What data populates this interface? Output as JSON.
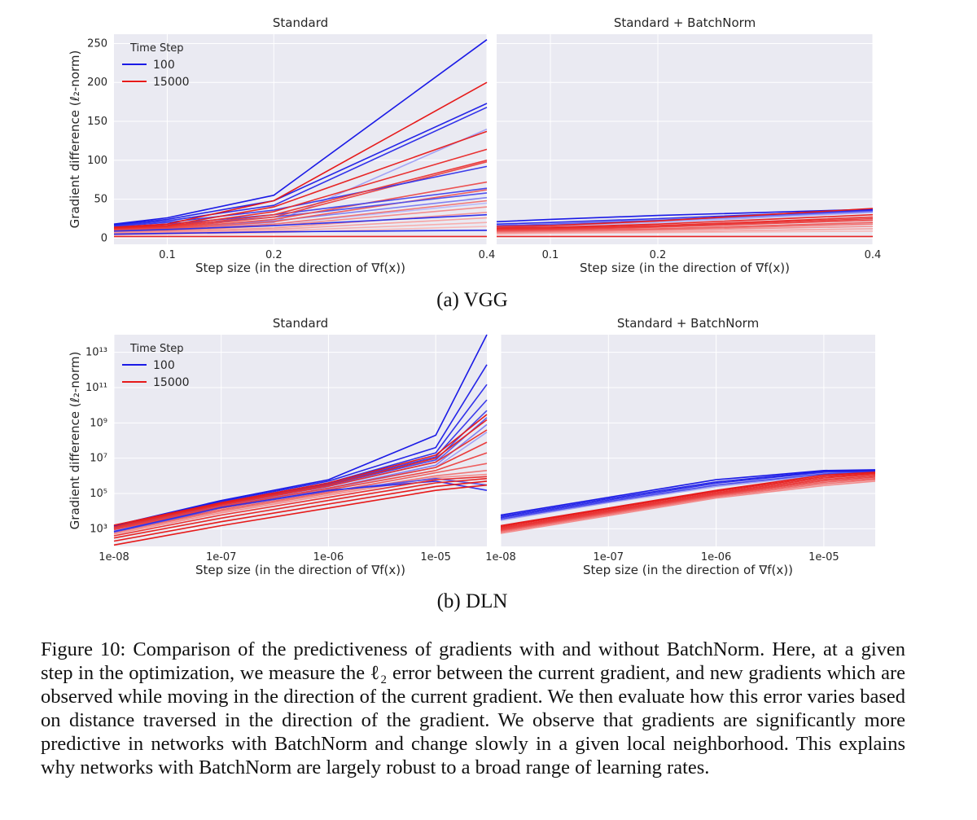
{
  "figure": {
    "subcaption_a": "(a) VGG",
    "subcaption_b": "(b) DLN",
    "caption": "Figure 10: Comparison of the predictiveness of gradients with and without BatchNorm. Here, at a given step in the optimization, we measure the ℓ₂ error between the current gradient, and new gradients which are observed while moving in the direction of the current gradient. We then evaluate how this error varies based on distance traversed in the direction of the gradient. We observe that gradients are significantly more predictive in networks with BatchNorm and change slowly in a given local neighborhood. This explains why networks with BatchNorm are largely robust to a broad range of learning rates."
  },
  "colors": {
    "blue": "#1a1ae6",
    "red": "#e61a1a",
    "plot_bg": "#eaeaf2",
    "grid": "#ffffff"
  },
  "chart_data": [
    {
      "type": "line",
      "title": "Standard",
      "xlabel": "Step size (in the direction of ∇f(x))",
      "ylabel": "Gradient difference (ℓ₂-norm)",
      "xscale": "linear",
      "xlim": [
        0.05,
        0.4
      ],
      "ylim": [
        -8,
        262
      ],
      "xticks": [
        {
          "v": 0.1,
          "label": "0.1"
        },
        {
          "v": 0.2,
          "label": "0.2"
        },
        {
          "v": 0.4,
          "label": "0.4"
        }
      ],
      "yticks": [
        {
          "v": 0,
          "label": "0"
        },
        {
          "v": 50,
          "label": "50"
        },
        {
          "v": 100,
          "label": "100"
        },
        {
          "v": 150,
          "label": "150"
        },
        {
          "v": 200,
          "label": "200"
        },
        {
          "v": 250,
          "label": "250"
        }
      ],
      "legend": {
        "title": "Time Step",
        "position": "upper-left",
        "entries": [
          {
            "label": "100",
            "color": "#1a1ae6"
          },
          {
            "label": "15000",
            "color": "#e61a1a"
          }
        ]
      },
      "x": [
        0.05,
        0.1,
        0.2,
        0.4
      ],
      "series": [
        {
          "group": "100",
          "shade": 1.0,
          "values": [
            18,
            26,
            55,
            255
          ]
        },
        {
          "group": "100",
          "shade": 0.95,
          "values": [
            17,
            24,
            48,
            173
          ]
        },
        {
          "group": "100",
          "shade": 0.9,
          "values": [
            16,
            22,
            42,
            168
          ]
        },
        {
          "group": "100",
          "shade": 0.85,
          "values": [
            15,
            20,
            36,
            92
          ]
        },
        {
          "group": "100",
          "shade": 0.8,
          "values": [
            13,
            18,
            30,
            64
          ]
        },
        {
          "group": "100",
          "shade": 0.75,
          "values": [
            12,
            16,
            27,
            58
          ]
        },
        {
          "group": "100",
          "shade": 0.55,
          "values": [
            11,
            14,
            22,
            52
          ]
        },
        {
          "group": "100",
          "shade": 0.4,
          "values": [
            10,
            13,
            20,
            140
          ]
        },
        {
          "group": "100",
          "shade": 0.3,
          "values": [
            10,
            12,
            18,
            45
          ]
        },
        {
          "group": "100",
          "shade": 0.9,
          "values": [
            9,
            11,
            16,
            30
          ]
        },
        {
          "group": "100",
          "shade": 0.95,
          "values": [
            5,
            6,
            8,
            10
          ]
        },
        {
          "group": "15000",
          "shade": 1.0,
          "values": [
            14,
            18,
            48,
            200
          ]
        },
        {
          "group": "15000",
          "shade": 0.95,
          "values": [
            13,
            16,
            40,
            137
          ]
        },
        {
          "group": "15000",
          "shade": 0.9,
          "values": [
            12,
            15,
            34,
            114
          ]
        },
        {
          "group": "15000",
          "shade": 0.85,
          "values": [
            12,
            14,
            30,
            100
          ]
        },
        {
          "group": "15000",
          "shade": 0.8,
          "values": [
            11,
            13,
            27,
            98
          ]
        },
        {
          "group": "15000",
          "shade": 0.75,
          "values": [
            10,
            12,
            24,
            72
          ]
        },
        {
          "group": "15000",
          "shade": 0.7,
          "values": [
            9,
            11,
            21,
            62
          ]
        },
        {
          "group": "15000",
          "shade": 0.6,
          "values": [
            9,
            10,
            18,
            48
          ]
        },
        {
          "group": "15000",
          "shade": 0.5,
          "values": [
            8,
            9,
            16,
            40
          ]
        },
        {
          "group": "15000",
          "shade": 0.45,
          "values": [
            7,
            8,
            13,
            33
          ]
        },
        {
          "group": "15000",
          "shade": 0.4,
          "values": [
            6,
            7,
            11,
            26
          ]
        },
        {
          "group": "15000",
          "shade": 0.35,
          "values": [
            5,
            6,
            9,
            20
          ]
        },
        {
          "group": "15000",
          "shade": 0.3,
          "values": [
            4,
            5,
            7,
            15
          ]
        },
        {
          "group": "15000",
          "shade": 0.95,
          "values": [
            2,
            2,
            2,
            2
          ]
        }
      ]
    },
    {
      "type": "line",
      "title": "Standard + BatchNorm",
      "xlabel": "Step size (in the direction of ∇f(x))",
      "ylabel": "",
      "xscale": "linear",
      "xlim": [
        0.05,
        0.4
      ],
      "ylim": [
        -8,
        262
      ],
      "xticks": [
        {
          "v": 0.1,
          "label": "0.1"
        },
        {
          "v": 0.2,
          "label": "0.2"
        },
        {
          "v": 0.4,
          "label": "0.4"
        }
      ],
      "yticks": [
        {
          "v": 0,
          "label": ""
        },
        {
          "v": 50,
          "label": ""
        },
        {
          "v": 100,
          "label": ""
        },
        {
          "v": 150,
          "label": ""
        },
        {
          "v": 200,
          "label": ""
        },
        {
          "v": 250,
          "label": ""
        }
      ],
      "x": [
        0.05,
        0.1,
        0.2,
        0.4
      ],
      "series": [
        {
          "group": "100",
          "shade": 1.0,
          "values": [
            21,
            24,
            29,
            37
          ]
        },
        {
          "group": "100",
          "shade": 0.9,
          "values": [
            18,
            20,
            25,
            36
          ]
        },
        {
          "group": "100",
          "shade": 0.7,
          "values": [
            16,
            18,
            23,
            35
          ]
        },
        {
          "group": "100",
          "shade": 0.5,
          "values": [
            15,
            17,
            22,
            34
          ]
        },
        {
          "group": "100",
          "shade": 0.35,
          "values": [
            14,
            16,
            20,
            33
          ]
        },
        {
          "group": "15000",
          "shade": 1.0,
          "values": [
            15,
            16,
            22,
            38
          ]
        },
        {
          "group": "15000",
          "shade": 0.95,
          "values": [
            13,
            14,
            18,
            30
          ]
        },
        {
          "group": "15000",
          "shade": 0.9,
          "values": [
            12,
            13,
            16,
            27
          ]
        },
        {
          "group": "15000",
          "shade": 0.85,
          "values": [
            11,
            12,
            15,
            25
          ]
        },
        {
          "group": "15000",
          "shade": 0.8,
          "values": [
            10,
            11,
            14,
            23
          ]
        },
        {
          "group": "15000",
          "shade": 0.7,
          "values": [
            9,
            10,
            12,
            20
          ]
        },
        {
          "group": "15000",
          "shade": 0.6,
          "values": [
            8,
            9,
            11,
            18
          ]
        },
        {
          "group": "15000",
          "shade": 0.5,
          "values": [
            7,
            8,
            10,
            15
          ]
        },
        {
          "group": "15000",
          "shade": 0.4,
          "values": [
            6,
            7,
            8,
            12
          ]
        },
        {
          "group": "15000",
          "shade": 0.3,
          "values": [
            5,
            6,
            7,
            9
          ]
        },
        {
          "group": "15000",
          "shade": 0.95,
          "values": [
            2,
            2,
            2,
            2
          ]
        }
      ]
    },
    {
      "type": "line",
      "title": "Standard",
      "xlabel": "Step size (in the direction of ∇f(x))",
      "ylabel": "Gradient difference (ℓ₂-norm)",
      "xscale": "log",
      "yscale": "log",
      "xlim": [
        1e-08,
        3e-05
      ],
      "ylim": [
        100.0,
        100000000000000.0
      ],
      "xticks": [
        {
          "v": 1e-08,
          "label": "1e-08"
        },
        {
          "v": 1e-07,
          "label": "1e-07"
        },
        {
          "v": 1e-06,
          "label": "1e-06"
        },
        {
          "v": 1e-05,
          "label": "1e-05"
        }
      ],
      "yticks": [
        {
          "v": 1000.0,
          "label": "10³"
        },
        {
          "v": 100000.0,
          "label": "10⁵"
        },
        {
          "v": 10000000.0,
          "label": "10⁷"
        },
        {
          "v": 1000000000.0,
          "label": "10⁹"
        },
        {
          "v": 100000000000.0,
          "label": "10¹¹"
        },
        {
          "v": 10000000000000.0,
          "label": "10¹³"
        }
      ],
      "legend": {
        "title": "Time Step",
        "position": "upper-left",
        "entries": [
          {
            "label": "100",
            "color": "#1a1ae6"
          },
          {
            "label": "15000",
            "color": "#e61a1a"
          }
        ]
      },
      "x": [
        1e-08,
        1e-07,
        1e-06,
        1e-05,
        3e-05
      ],
      "series": [
        {
          "group": "100",
          "shade": 1.0,
          "values": [
            1500,
            40000,
            600000,
            200000000,
            100000000000000
          ]
        },
        {
          "group": "100",
          "shade": 0.95,
          "values": [
            1400,
            35000,
            500000,
            40000000,
            2000000000000
          ]
        },
        {
          "group": "100",
          "shade": 0.9,
          "values": [
            1300,
            30000,
            400000,
            20000000,
            150000000000
          ]
        },
        {
          "group": "100",
          "shade": 0.85,
          "values": [
            1200,
            28000,
            350000,
            12000000,
            20000000000
          ]
        },
        {
          "group": "100",
          "shade": 0.8,
          "values": [
            1100,
            25000,
            300000,
            8000000,
            5000000000
          ]
        },
        {
          "group": "100",
          "shade": 0.7,
          "values": [
            1000,
            22000,
            250000,
            6000000,
            2000000000
          ]
        },
        {
          "group": "100",
          "shade": 0.55,
          "values": [
            900,
            20000,
            200000,
            4000000,
            800000000
          ]
        },
        {
          "group": "100",
          "shade": 0.4,
          "values": [
            800,
            18000,
            180000,
            3000000,
            300000000
          ]
        },
        {
          "group": "100",
          "shade": 0.9,
          "values": [
            700,
            16000,
            150000,
            500000,
            150000
          ]
        },
        {
          "group": "100",
          "shade": 0.75,
          "values": [
            650,
            15000,
            140000,
            700000,
            300000
          ]
        },
        {
          "group": "15000",
          "shade": 1.0,
          "values": [
            1600,
            30000,
            400000,
            15000000,
            3000000000
          ]
        },
        {
          "group": "15000",
          "shade": 0.95,
          "values": [
            1400,
            26000,
            320000,
            10000000,
            1500000000
          ]
        },
        {
          "group": "15000",
          "shade": 0.9,
          "values": [
            1200,
            22000,
            260000,
            6000000,
            400000000
          ]
        },
        {
          "group": "15000",
          "shade": 0.85,
          "values": [
            1000,
            18000,
            200000,
            3000000,
            80000000
          ]
        },
        {
          "group": "15000",
          "shade": 0.8,
          "values": [
            900,
            15000,
            160000,
            2000000,
            20000000
          ]
        },
        {
          "group": "15000",
          "shade": 0.7,
          "values": [
            700,
            12000,
            120000,
            1500000,
            5000000
          ]
        },
        {
          "group": "15000",
          "shade": 0.6,
          "values": [
            600,
            10000,
            100000,
            1000000,
            2000000
          ]
        },
        {
          "group": "15000",
          "shade": 0.5,
          "values": [
            500,
            8000,
            80000,
            800000,
            1200000
          ]
        },
        {
          "group": "15000",
          "shade": 0.9,
          "values": [
            400,
            6000,
            60000,
            600000,
            900000
          ]
        },
        {
          "group": "15000",
          "shade": 0.95,
          "values": [
            300,
            4000,
            40000,
            400000,
            700000
          ]
        },
        {
          "group": "15000",
          "shade": 1.0,
          "values": [
            200,
            2500,
            25000,
            250000,
            500000
          ]
        },
        {
          "group": "15000",
          "shade": 1.0,
          "values": [
            120,
            1500,
            15000,
            150000,
            300000
          ]
        }
      ]
    },
    {
      "type": "line",
      "title": "Standard + BatchNorm",
      "xlabel": "Step size (in the direction of ∇f(x))",
      "ylabel": "",
      "xscale": "log",
      "yscale": "log",
      "xlim": [
        1e-08,
        3e-05
      ],
      "ylim": [
        100.0,
        100000000000000.0
      ],
      "xticks": [
        {
          "v": 1e-08,
          "label": "1e-08"
        },
        {
          "v": 1e-07,
          "label": "1e-07"
        },
        {
          "v": 1e-06,
          "label": "1e-06"
        },
        {
          "v": 1e-05,
          "label": "1e-05"
        }
      ],
      "yticks": [
        {
          "v": 1000.0,
          "label": ""
        },
        {
          "v": 100000.0,
          "label": ""
        },
        {
          "v": 10000000.0,
          "label": ""
        },
        {
          "v": 1000000000.0,
          "label": ""
        },
        {
          "v": 100000000000.0,
          "label": ""
        },
        {
          "v": 10000000000000.0,
          "label": ""
        }
      ],
      "x": [
        1e-08,
        1e-07,
        1e-06,
        1e-05,
        3e-05
      ],
      "series": [
        {
          "group": "100",
          "shade": 1.0,
          "values": [
            6000,
            60000,
            600000,
            2000000,
            2200000
          ]
        },
        {
          "group": "100",
          "shade": 0.95,
          "values": [
            5000,
            50000,
            450000,
            1800000,
            2000000
          ]
        },
        {
          "group": "100",
          "shade": 0.9,
          "values": [
            4200,
            42000,
            380000,
            1600000,
            1800000
          ]
        },
        {
          "group": "100",
          "shade": 0.8,
          "values": [
            3500,
            35000,
            300000,
            1300000,
            1600000
          ]
        },
        {
          "group": "100",
          "shade": 0.4,
          "values": [
            3000,
            30000,
            250000,
            1100000,
            1400000
          ]
        },
        {
          "group": "15000",
          "shade": 1.0,
          "values": [
            1500,
            15000,
            150000,
            1100000,
            1600000
          ]
        },
        {
          "group": "15000",
          "shade": 0.95,
          "values": [
            1300,
            13000,
            130000,
            900000,
            1400000
          ]
        },
        {
          "group": "15000",
          "shade": 0.9,
          "values": [
            1100,
            11000,
            110000,
            750000,
            1200000
          ]
        },
        {
          "group": "15000",
          "shade": 0.85,
          "values": [
            950,
            9500,
            95000,
            620000,
            1000000
          ]
        },
        {
          "group": "15000",
          "shade": 0.8,
          "values": [
            850,
            8500,
            85000,
            520000,
            850000
          ]
        },
        {
          "group": "15000",
          "shade": 0.7,
          "values": [
            750,
            7500,
            75000,
            430000,
            700000
          ]
        },
        {
          "group": "15000",
          "shade": 0.6,
          "values": [
            650,
            6500,
            65000,
            350000,
            600000
          ]
        },
        {
          "group": "15000",
          "shade": 0.5,
          "values": [
            550,
            5500,
            55000,
            280000,
            500000
          ]
        }
      ]
    }
  ]
}
